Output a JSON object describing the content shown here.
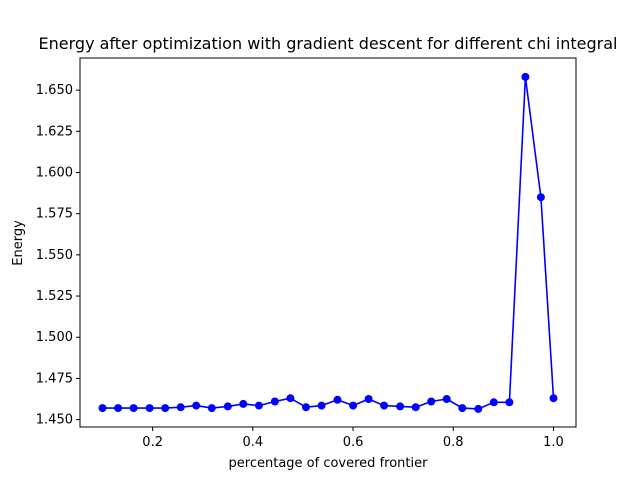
{
  "chart_data": {
    "type": "line",
    "title": "Energy after optimization with gradient descent for different chi integral",
    "xlabel": "percentage of covered frontier",
    "ylabel": "Energy",
    "xlim": [
      0.055,
      1.045
    ],
    "ylim": [
      1.4455,
      1.6695
    ],
    "xticks": [
      0.2,
      0.4,
      0.6,
      0.8,
      1.0
    ],
    "xtick_labels": [
      "0.2",
      "0.4",
      "0.6",
      "0.8",
      "1.0"
    ],
    "yticks": [
      1.45,
      1.475,
      1.5,
      1.525,
      1.55,
      1.575,
      1.6,
      1.625,
      1.65
    ],
    "ytick_labels": [
      "1.450",
      "1.475",
      "1.500",
      "1.525",
      "1.550",
      "1.575",
      "1.600",
      "1.625",
      "1.650"
    ],
    "grid": false,
    "series": [
      {
        "color": "#0000ff",
        "marker": "circle",
        "x": [
          0.1,
          0.131,
          0.162,
          0.194,
          0.225,
          0.256,
          0.287,
          0.318,
          0.35,
          0.381,
          0.412,
          0.444,
          0.475,
          0.506,
          0.537,
          0.569,
          0.6,
          0.631,
          0.662,
          0.694,
          0.725,
          0.756,
          0.787,
          0.818,
          0.85,
          0.881,
          0.912,
          0.944,
          0.975,
          1.0
        ],
        "y": [
          1.457,
          1.457,
          1.457,
          1.457,
          1.457,
          1.4575,
          1.4585,
          1.457,
          1.458,
          1.4595,
          1.4585,
          1.461,
          1.463,
          1.4575,
          1.4585,
          1.462,
          1.4585,
          1.4625,
          1.4585,
          1.458,
          1.4575,
          1.461,
          1.4625,
          1.457,
          1.4565,
          1.4605,
          1.4605,
          1.658,
          1.585,
          1.463
        ]
      }
    ]
  }
}
